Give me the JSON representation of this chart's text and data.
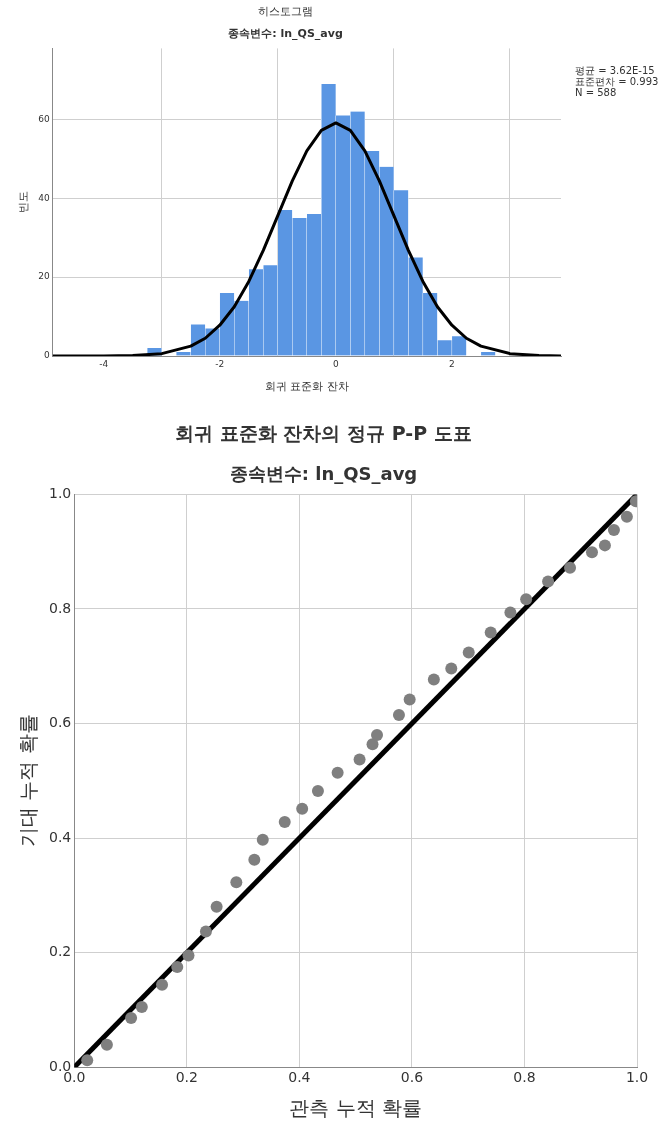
{
  "chart_data": [
    {
      "type": "histogram",
      "title": "히스토그램",
      "subtitle": "종속변수: ln_QS_avg",
      "xlabel": "회귀 표준화 잔차",
      "ylabel": "빈도",
      "bins": [
        -3.25,
        -3.0,
        -2.75,
        -2.5,
        -2.25,
        -2.0,
        -1.75,
        -1.5,
        -1.25,
        -1.0,
        -0.75,
        -0.5,
        -0.25,
        0,
        0.25,
        0.5,
        0.75,
        1.0,
        1.25,
        1.5,
        1.75,
        2.0,
        2.25,
        2.5,
        2.75
      ],
      "values": [
        2,
        0,
        1,
        8,
        7,
        16,
        14,
        22,
        23,
        37,
        35,
        36,
        69,
        61,
        62,
        52,
        48,
        42,
        25,
        16,
        4,
        5,
        0,
        1
      ],
      "color": "#5a96e3",
      "series": [
        {
          "type": "line",
          "color": "#000000",
          "x": [
            -4.88,
            -4,
            -3.5,
            -3,
            -2.5,
            -2.25,
            -2,
            -1.75,
            -1.5,
            -1.25,
            -1,
            -0.75,
            -0.5,
            -0.25,
            0,
            0.25,
            0.5,
            0.75,
            1,
            1.25,
            1.5,
            1.75,
            2,
            2.25,
            2.5,
            3,
            3.5,
            3.88
          ],
          "values": [
            0,
            0,
            0.1,
            0.6,
            2.5,
            4.5,
            7.8,
            12.5,
            18.9,
            26.8,
            35.6,
            44.4,
            52,
            57.2,
            59.1,
            57.2,
            52,
            44.4,
            35.6,
            26.8,
            18.9,
            12.5,
            7.8,
            4.5,
            2.5,
            0.6,
            0.1,
            0
          ]
        }
      ],
      "xlim": [
        -4.88,
        3.88
      ],
      "xticks": [
        -4,
        -2,
        0,
        2
      ],
      "ylim": [
        0,
        78
      ],
      "yticks": [
        0,
        20,
        40,
        60
      ],
      "grid": true,
      "annotations": [
        "평균 = 3.62E-15",
        "표준편차 = 0.993",
        "N = 588"
      ]
    },
    {
      "type": "scatter",
      "title": "회귀 표준화 잔차의 정규 P-P 도표",
      "subtitle": "종속변수: ln_QS_avg",
      "xlabel": "관측 누적 확률",
      "ylabel": "기대 누적 확률",
      "series": [
        {
          "type": "scatter",
          "color": "#7f7f7f",
          "marker": "circle",
          "x": [
            0.023,
            0.058,
            0.101,
            0.12,
            0.156,
            0.183,
            0.203,
            0.234,
            0.253,
            0.288,
            0.32,
            0.335,
            0.374,
            0.405,
            0.433,
            0.468,
            0.507,
            0.53,
            0.538,
            0.577,
            0.596,
            0.639,
            0.67,
            0.701,
            0.74,
            0.775,
            0.803,
            0.842,
            0.881,
            0.92,
            0.943,
            0.959,
            0.982,
            0.998
          ],
          "values": [
            0.012,
            0.039,
            0.086,
            0.105,
            0.144,
            0.175,
            0.195,
            0.237,
            0.28,
            0.323,
            0.362,
            0.397,
            0.428,
            0.451,
            0.482,
            0.514,
            0.537,
            0.564,
            0.58,
            0.615,
            0.642,
            0.677,
            0.696,
            0.724,
            0.759,
            0.794,
            0.817,
            0.848,
            0.872,
            0.899,
            0.911,
            0.938,
            0.961,
            0.988
          ]
        },
        {
          "type": "line",
          "color": "#000000",
          "x": [
            0,
            1
          ],
          "values": [
            0,
            1
          ]
        }
      ],
      "xlim": [
        0,
        1
      ],
      "xticks": [
        {
          "value": 0,
          "label": "0.0"
        },
        {
          "value": 0.2,
          "label": "0.2"
        },
        {
          "value": 0.4,
          "label": "0.4"
        },
        {
          "value": 0.6,
          "label": "0.6"
        },
        {
          "value": 0.8,
          "label": "0.8"
        },
        {
          "value": 1,
          "label": "1.0"
        }
      ],
      "ylim": [
        0,
        1
      ],
      "yticks": [
        {
          "value": 0,
          "label": "0.0"
        },
        {
          "value": 0.2,
          "label": "0.2"
        },
        {
          "value": 0.4,
          "label": "0.4"
        },
        {
          "value": 0.6,
          "label": "0.6"
        },
        {
          "value": 0.8,
          "label": "0.8"
        },
        {
          "value": 1,
          "label": "1.0"
        }
      ],
      "grid": true
    }
  ]
}
